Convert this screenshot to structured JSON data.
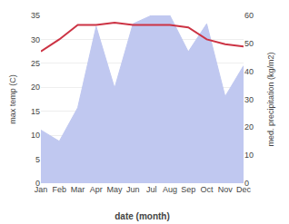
{
  "chart_data": {
    "type": "line",
    "categories": [
      "Jan",
      "Feb",
      "Mar",
      "Apr",
      "May",
      "Jun",
      "Jul",
      "Aug",
      "Sep",
      "Oct",
      "Nov",
      "Dec"
    ],
    "series": [
      {
        "type": "area",
        "axis": "y2",
        "color": "#c0c8f0",
        "values": [
          19,
          15,
          27,
          56,
          34,
          57,
          60,
          60,
          47,
          57,
          31,
          42
        ]
      },
      {
        "type": "line",
        "color": "#cc3344",
        "values": [
          27.5,
          30.0,
          33.0,
          33.0,
          33.5,
          33.0,
          33.0,
          33.0,
          32.5,
          30.0,
          29.0,
          28.5
        ]
      }
    ],
    "xlabel": "date (month)",
    "ylabel": "max temp (C)",
    "y2label": "med. precipitation (kg/m2)",
    "ylim": [
      0,
      35
    ],
    "yticks": [
      0,
      5,
      10,
      15,
      20,
      25,
      30,
      35
    ],
    "y2lim": [
      0,
      60
    ],
    "y2ticks": [
      0,
      10,
      20,
      30,
      40,
      50,
      60
    ],
    "grid": true
  }
}
